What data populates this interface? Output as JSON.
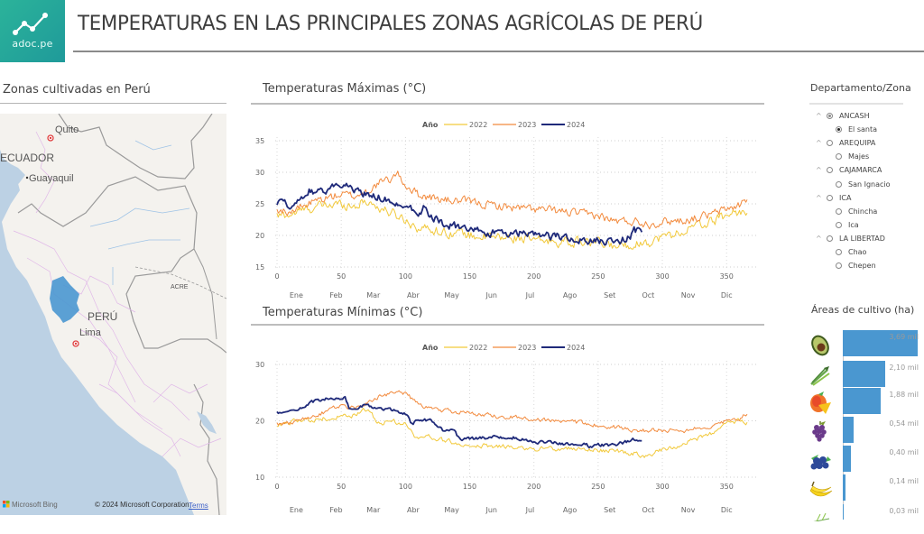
{
  "header": {
    "logo_text": "adoc.pe",
    "title": "TEMPERATURAS EN LAS PRINCIPALES ZONAS AGRÍCOLAS DE PERÚ"
  },
  "map_panel": {
    "title": "Zonas cultivadas en Perú",
    "labels": {
      "quito": "Quito",
      "ecuador": "ECUADOR",
      "guayaquil": "Guayaquil",
      "acre": "ACRE",
      "peru": "PERÚ",
      "lima": "Lima"
    },
    "attribution": {
      "bing": "Microsoft Bing",
      "copyright": "© 2024 Microsoft Corporation",
      "terms": "Terms"
    },
    "highlight_color": "#4a97d0"
  },
  "slicer": {
    "title": "Departamento/Zona",
    "items": [
      {
        "label": "ANCASH",
        "level": 0,
        "state": "partial"
      },
      {
        "label": "El santa",
        "level": 1,
        "state": "on"
      },
      {
        "label": "AREQUIPA",
        "level": 0,
        "state": "off"
      },
      {
        "label": "Majes",
        "level": 1,
        "state": "off"
      },
      {
        "label": "CAJAMARCA",
        "level": 0,
        "state": "off"
      },
      {
        "label": "San Ignacio",
        "level": 1,
        "state": "off"
      },
      {
        "label": "ICA",
        "level": 0,
        "state": "off"
      },
      {
        "label": "Chincha",
        "level": 1,
        "state": "off"
      },
      {
        "label": "Ica",
        "level": 1,
        "state": "off"
      },
      {
        "label": "LA LIBERTAD",
        "level": 0,
        "state": "off"
      },
      {
        "label": "Chao",
        "level": 1,
        "state": "off"
      },
      {
        "label": "Chepen",
        "level": 1,
        "state": "off"
      }
    ]
  },
  "areas": {
    "title": "Áreas de cultivo (ha)",
    "bar_color": "#4a97d0",
    "items": [
      {
        "crop": "palta",
        "icon": "avocado-icon",
        "value": 3.69,
        "label": "3,69 mil"
      },
      {
        "crop": "espárrago",
        "icon": "asparagus-icon",
        "value": 2.1,
        "label": "2,10 mil"
      },
      {
        "crop": "mango",
        "icon": "mango-icon",
        "value": 1.88,
        "label": "1,88 mil"
      },
      {
        "crop": "uva",
        "icon": "grape-icon",
        "value": 0.54,
        "label": "0,54 mil"
      },
      {
        "crop": "arándano",
        "icon": "blueberry-icon",
        "value": 0.4,
        "label": "0,40 mil"
      },
      {
        "crop": "plátano",
        "icon": "banana-icon",
        "value": 0.14,
        "label": "0,14 mil"
      },
      {
        "crop": "otro",
        "icon": "berry-branch-icon",
        "value": 0.03,
        "label": "0,03 mil"
      }
    ]
  },
  "chart_data": [
    {
      "type": "line",
      "title": "Temperaturas Máximas (°C)",
      "legend_title": "Año",
      "legend_position": "top-center",
      "xlabel": "",
      "ylabel": "",
      "xlim": [
        0,
        366
      ],
      "ylim": [
        15,
        35
      ],
      "yticks": [
        15,
        20,
        25,
        30,
        35
      ],
      "xticks": [
        0,
        50,
        100,
        150,
        200,
        250,
        300,
        350
      ],
      "month_labels": [
        "Ene",
        "Feb",
        "Mar",
        "Abr",
        "May",
        "Jun",
        "Jul",
        "Ago",
        "Set",
        "Oct",
        "Nov",
        "Dic"
      ],
      "grid": true,
      "series": [
        {
          "name": "2022",
          "color": "#f2c93b",
          "noise": 0.9,
          "x": [
            0,
            10,
            20,
            30,
            40,
            50,
            60,
            70,
            80,
            90,
            100,
            110,
            120,
            130,
            140,
            150,
            170,
            190,
            200,
            220,
            240,
            250,
            260,
            270,
            280,
            290,
            300,
            310,
            320,
            330,
            340,
            350,
            360,
            366
          ],
          "y": [
            23,
            23.3,
            24,
            24.5,
            24.8,
            25,
            24.7,
            25.5,
            24.3,
            23.5,
            22.5,
            21.2,
            21,
            20.5,
            20.5,
            20,
            19.6,
            19.6,
            19.2,
            19,
            18.9,
            18.8,
            18.3,
            18.5,
            18.7,
            19,
            19.8,
            20.2,
            21,
            21.6,
            22.3,
            23.3,
            23.8,
            23.3
          ]
        },
        {
          "name": "2023",
          "color": "#f28a3d",
          "noise": 0.8,
          "x": [
            0,
            10,
            20,
            30,
            40,
            50,
            60,
            70,
            80,
            90,
            93,
            100,
            110,
            120,
            130,
            150,
            170,
            190,
            210,
            230,
            240,
            250,
            260,
            270,
            280,
            290,
            300,
            320,
            340,
            350,
            360,
            366
          ],
          "y": [
            24,
            23.8,
            24.5,
            25.5,
            26,
            26.5,
            26.2,
            27,
            28.3,
            29,
            30,
            28,
            26.5,
            26,
            25.6,
            25.3,
            24.7,
            24.3,
            24,
            23.6,
            23.3,
            23.2,
            22.4,
            22.2,
            22.3,
            21.8,
            22.2,
            22.5,
            23.4,
            24.2,
            24.8,
            25.8
          ]
        },
        {
          "name": "2024",
          "color": "#1f2a7a",
          "noise": 0.7,
          "x": [
            0,
            10,
            20,
            25,
            30,
            40,
            50,
            53,
            60,
            70,
            80,
            90,
            100,
            110,
            115,
            120,
            130,
            140,
            150,
            160,
            170,
            180,
            190,
            200,
            210,
            220,
            230,
            240,
            250,
            260,
            265,
            275,
            278,
            284
          ],
          "y": [
            25,
            25,
            25.8,
            27,
            27,
            27.4,
            28,
            28.5,
            26.8,
            26.5,
            26.2,
            25.2,
            25,
            23.6,
            24.6,
            23,
            21.8,
            21.4,
            20.6,
            20.6,
            20.3,
            20.2,
            20.3,
            20,
            19.9,
            19.8,
            19.5,
            19.1,
            19.2,
            19.1,
            19.1,
            19.8,
            20.8,
            20.4
          ]
        }
      ]
    },
    {
      "type": "line",
      "title": "Temperaturas Mínimas (°C)",
      "legend_title": "Año",
      "legend_position": "top-center",
      "xlabel": "",
      "ylabel": "",
      "xlim": [
        0,
        366
      ],
      "ylim": [
        10,
        30
      ],
      "yticks": [
        10,
        20,
        30
      ],
      "xticks": [
        0,
        50,
        100,
        150,
        200,
        250,
        300,
        350
      ],
      "month_labels": [
        "Ene",
        "Feb",
        "Mar",
        "Abr",
        "May",
        "Jun",
        "Jul",
        "Ago",
        "Set",
        "Oct",
        "Nov",
        "Dic"
      ],
      "grid": true,
      "series": [
        {
          "name": "2022",
          "color": "#f2c93b",
          "noise": 0.5,
          "x": [
            0,
            10,
            20,
            30,
            40,
            50,
            60,
            67,
            72,
            80,
            90,
            100,
            107,
            120,
            130,
            150,
            170,
            190,
            210,
            230,
            250,
            260,
            270,
            280,
            285,
            300,
            320,
            330,
            340,
            350,
            360,
            366
          ],
          "y": [
            19.2,
            19.8,
            20.2,
            20.2,
            20.5,
            20.8,
            21,
            22.2,
            21.5,
            19.5,
            20,
            19.3,
            17.3,
            17.2,
            16.5,
            15.8,
            15.5,
            15.2,
            15,
            15,
            14.8,
            14.8,
            14.4,
            14.2,
            13.6,
            14.8,
            16.2,
            17,
            17.8,
            19.5,
            20,
            19.6
          ]
        },
        {
          "name": "2023",
          "color": "#f28a3d",
          "noise": 0.45,
          "x": [
            0,
            10,
            20,
            30,
            40,
            50,
            60,
            70,
            80,
            90,
            95,
            100,
            110,
            120,
            130,
            150,
            170,
            190,
            210,
            230,
            250,
            260,
            270,
            280,
            300,
            320,
            340,
            350,
            360,
            366
          ],
          "y": [
            19.3,
            19.6,
            20.3,
            21,
            21.8,
            22.8,
            22.2,
            23.2,
            24.4,
            24.8,
            25.5,
            24.8,
            23,
            22.2,
            21.8,
            21.4,
            20.8,
            20.6,
            20.1,
            19.8,
            19.2,
            18.9,
            18.7,
            18.3,
            18.4,
            18.3,
            19.3,
            20.1,
            20.3,
            21.3
          ]
        },
        {
          "name": "2024",
          "color": "#1f2a7a",
          "noise": 0.35,
          "x": [
            0,
            10,
            20,
            30,
            40,
            50,
            53,
            56,
            60,
            70,
            80,
            90,
            100,
            105,
            110,
            120,
            130,
            138,
            142,
            150,
            170,
            180,
            190,
            200,
            210,
            220,
            240,
            245,
            250,
            260,
            270,
            277,
            284
          ],
          "y": [
            21.5,
            21.8,
            22.4,
            23.6,
            24,
            23.8,
            24.4,
            22.4,
            22.3,
            22.8,
            22.2,
            21.8,
            21.3,
            19.4,
            20.1,
            20,
            18.2,
            18.4,
            16.8,
            16.8,
            17.1,
            17.2,
            16.8,
            16.1,
            16.2,
            15.9,
            15.9,
            15.2,
            15.8,
            15.6,
            16.1,
            16.8,
            16.2
          ]
        }
      ]
    }
  ]
}
